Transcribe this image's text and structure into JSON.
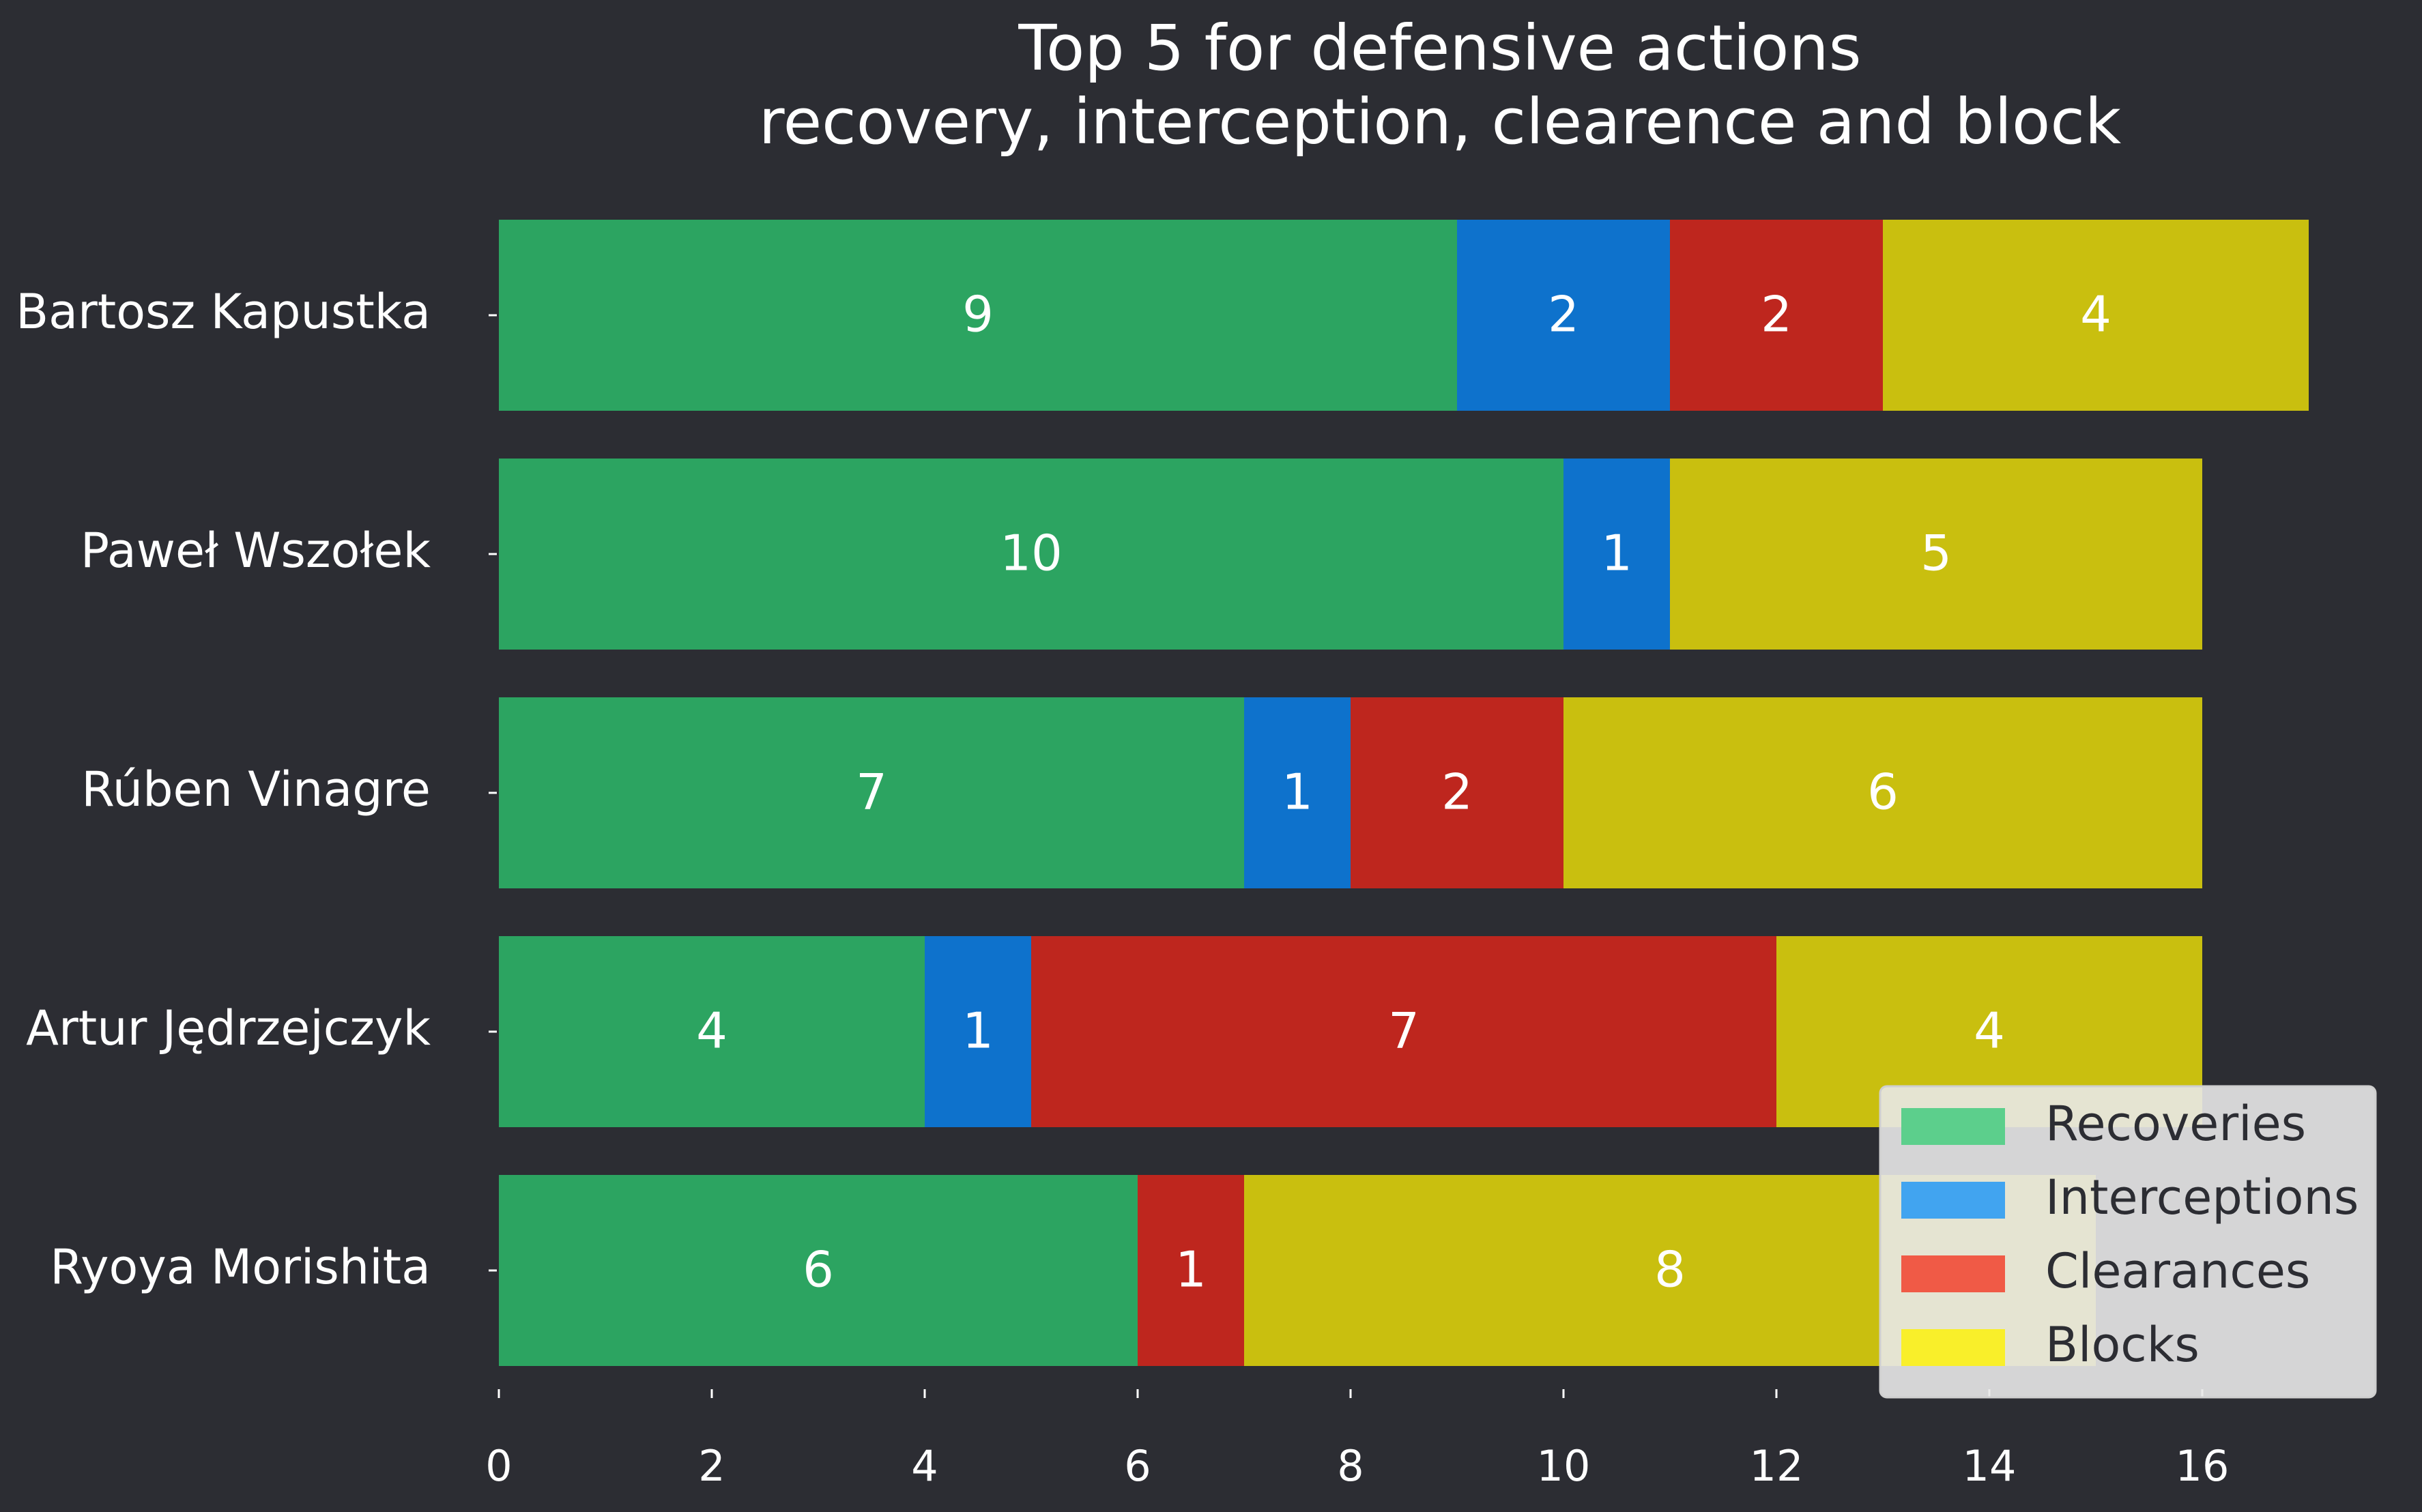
{
  "chart_data": {
    "type": "bar",
    "orientation": "horizontal",
    "stacked": true,
    "title": "Top 5 for defensive actions\nrecovery, interception, clearence and block",
    "categories": [
      "Bartosz Kapustka",
      "Paweł Wszołek",
      "Rúben Vinagre",
      "Artur Jędrzejczyk",
      "Ryoya Morishita"
    ],
    "series": [
      {
        "name": "Recoveries",
        "color": "#2ca461",
        "legend_color": "#5ccf8c",
        "values": [
          9,
          10,
          7,
          4,
          6
        ]
      },
      {
        "name": "Interceptions",
        "color": "#0e72cc",
        "legend_color": "#41a4f0",
        "values": [
          2,
          1,
          1,
          1,
          0
        ]
      },
      {
        "name": "Clearances",
        "color": "#be261e",
        "legend_color": "#f05a46",
        "values": [
          2,
          0,
          2,
          7,
          1
        ]
      },
      {
        "name": "Blocks",
        "color": "#c9bf0f",
        "legend_color": "#f9ef2a",
        "values": [
          4,
          5,
          6,
          4,
          8
        ]
      }
    ],
    "xlim": [
      0,
      17
    ],
    "xticks": [
      0,
      2,
      4,
      6,
      8,
      10,
      12,
      14,
      16
    ],
    "xlabel": "",
    "ylabel": "",
    "grid": false,
    "legend_position": "lower-right",
    "background_color": "#2c2d33",
    "text_color": "#ffffff"
  }
}
